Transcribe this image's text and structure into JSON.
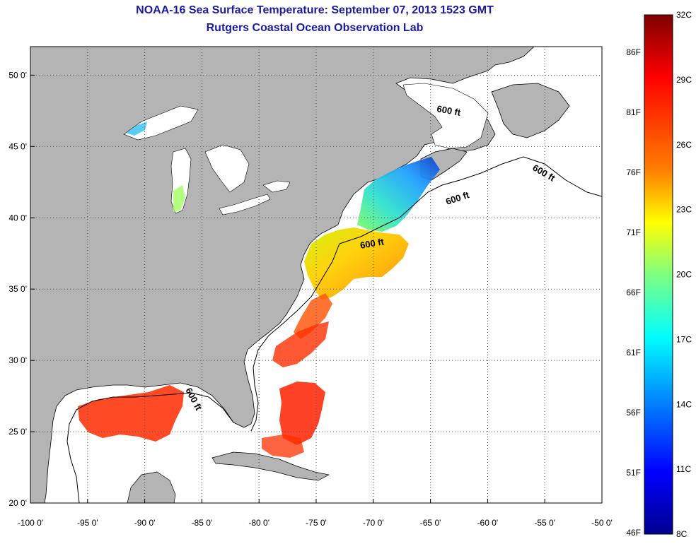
{
  "header": {
    "title": "NOAA-16 Sea Surface Temperature:  September 07, 2013 1523 GMT",
    "subtitle": "Rutgers Coastal Ocean Observation Lab"
  },
  "map": {
    "lon_range": [
      -100,
      -50
    ],
    "lat_range": [
      20,
      52
    ],
    "x_ticks": [
      "-100 0'",
      "-95 0'",
      "-90 0'",
      "-85 0'",
      "-80 0'",
      "-75 0'",
      "-70 0'",
      "-65 0'",
      "-60 0'",
      "-55 0'",
      "-50 0'"
    ],
    "y_ticks": [
      "50 0'",
      "45 0'",
      "40 0'",
      "35 0'",
      "30 0'",
      "25 0'",
      "20 0'"
    ],
    "grid": "dotted",
    "contour_labels": [
      "600 ft",
      "600 ft",
      "600 ft",
      "600 ft",
      "600 ft"
    ],
    "colors": {
      "land": "#b4b4b4",
      "ocean_no_data": "#ffffff",
      "coastline": "#000000"
    }
  },
  "colorbar": {
    "range_c": [
      8,
      32
    ],
    "celsius_labels": [
      "32C",
      "29C",
      "26C",
      "23C",
      "20C",
      "17C",
      "14C",
      "11C",
      "8C"
    ],
    "fahrenheit_labels": [
      "86F",
      "81F",
      "76F",
      "71F",
      "66F",
      "61F",
      "56F",
      "51F",
      "46F"
    ],
    "colormap": "jet",
    "colormap_stops": [
      "#7f0000",
      "#ff0000",
      "#ff7f00",
      "#ffff00",
      "#7fff7f",
      "#00ffff",
      "#007fff",
      "#0000ff",
      "#00008f"
    ]
  }
}
